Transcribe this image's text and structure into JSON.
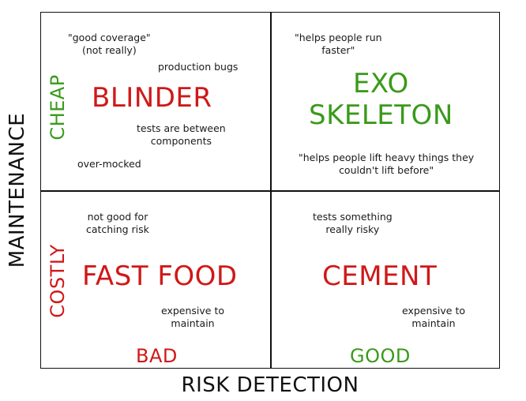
{
  "axes": {
    "x_label": "RISK DETECTION",
    "y_label": "MAINTENANCE",
    "y_top": "CHEAP",
    "y_bottom": "COSTLY",
    "x_left": "BAD",
    "x_right": "GOOD"
  },
  "quadrants": {
    "top_left": {
      "title": "BLINDER",
      "notes": [
        "\"good coverage\"\n(not really)",
        "production bugs",
        "tests are between\ncomponents",
        "over-mocked"
      ]
    },
    "top_right": {
      "title": "EXO\nSKELETON",
      "notes": [
        "\"helps people run\nfaster\"",
        "\"helps people lift heavy things they\ncouldn't lift before\""
      ]
    },
    "bottom_left": {
      "title": "FAST FOOD",
      "notes": [
        "not good for\ncatching risk",
        "expensive to\nmaintain"
      ]
    },
    "bottom_right": {
      "title": "CEMENT",
      "notes": [
        "tests something\nreally risky",
        "expensive to\nmaintain"
      ]
    }
  },
  "colors": {
    "red": "#d01818",
    "green": "#3a9a1a"
  }
}
